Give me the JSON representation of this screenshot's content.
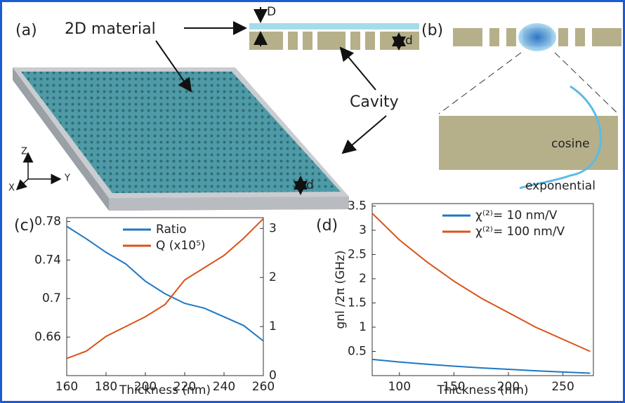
{
  "diagram": {
    "panel_a": "(a)",
    "panel_b": "(b)",
    "material_label": "2D material",
    "cavity_label": "Cavity",
    "thickness_D": "D",
    "thickness_d_top": "d",
    "thickness_d_slab": "d",
    "axis_z": "Z",
    "axis_y": "Y",
    "axis_x": "X",
    "cosine_label": "cosine",
    "exponential_label": "exponential"
  },
  "chart_data": [
    {
      "type": "line",
      "panel_label": "(c)",
      "x_label": "Thickness (nm)",
      "x": [
        160,
        170,
        180,
        190,
        200,
        210,
        220,
        230,
        240,
        250,
        260
      ],
      "xlim": [
        160,
        260
      ],
      "xticks": [
        160,
        180,
        200,
        220,
        240,
        260
      ],
      "ylim": [
        0.62,
        0.784
      ],
      "yticks": [
        0.66,
        0.7,
        0.74,
        0.78
      ],
      "y2lim": [
        0,
        3.22
      ],
      "y2ticks": [
        0,
        1,
        2,
        3
      ],
      "legend": "upper center",
      "series": [
        {
          "name": "Ratio",
          "color": "#1f77c4",
          "values": [
            0.775,
            0.762,
            0.748,
            0.736,
            0.718,
            0.705,
            0.695,
            0.69,
            0.681,
            0.672,
            0.656
          ]
        },
        {
          "name": "Q (x10⁵)",
          "color": "#d95319",
          "axis": "y2",
          "values": [
            0.35,
            0.5,
            0.8,
            1.0,
            1.2,
            1.45,
            1.95,
            2.2,
            2.45,
            2.8,
            3.2
          ]
        }
      ]
    },
    {
      "type": "line",
      "panel_label": "(d)",
      "x_label": "Thickness (nm)",
      "y_label": "gnl /2π (GHz)",
      "x": [
        75,
        100,
        125,
        150,
        175,
        200,
        225,
        250,
        275
      ],
      "xlim": [
        75,
        278
      ],
      "xticks": [
        100,
        150,
        200,
        250
      ],
      "ylim": [
        0,
        3.55
      ],
      "yticks": [
        0.5,
        1,
        1.5,
        2,
        2.5,
        3,
        3.5
      ],
      "legend": "upper right",
      "series": [
        {
          "name": "χ⁽²⁾= 10 nm/V",
          "color": "#1f77c4",
          "values": [
            0.335,
            0.28,
            0.235,
            0.195,
            0.16,
            0.13,
            0.1,
            0.075,
            0.05
          ]
        },
        {
          "name": "χ⁽²⁾= 100 nm/V",
          "color": "#d95319",
          "values": [
            3.35,
            2.8,
            2.35,
            1.95,
            1.6,
            1.3,
            1.0,
            0.75,
            0.5
          ]
        }
      ]
    }
  ]
}
